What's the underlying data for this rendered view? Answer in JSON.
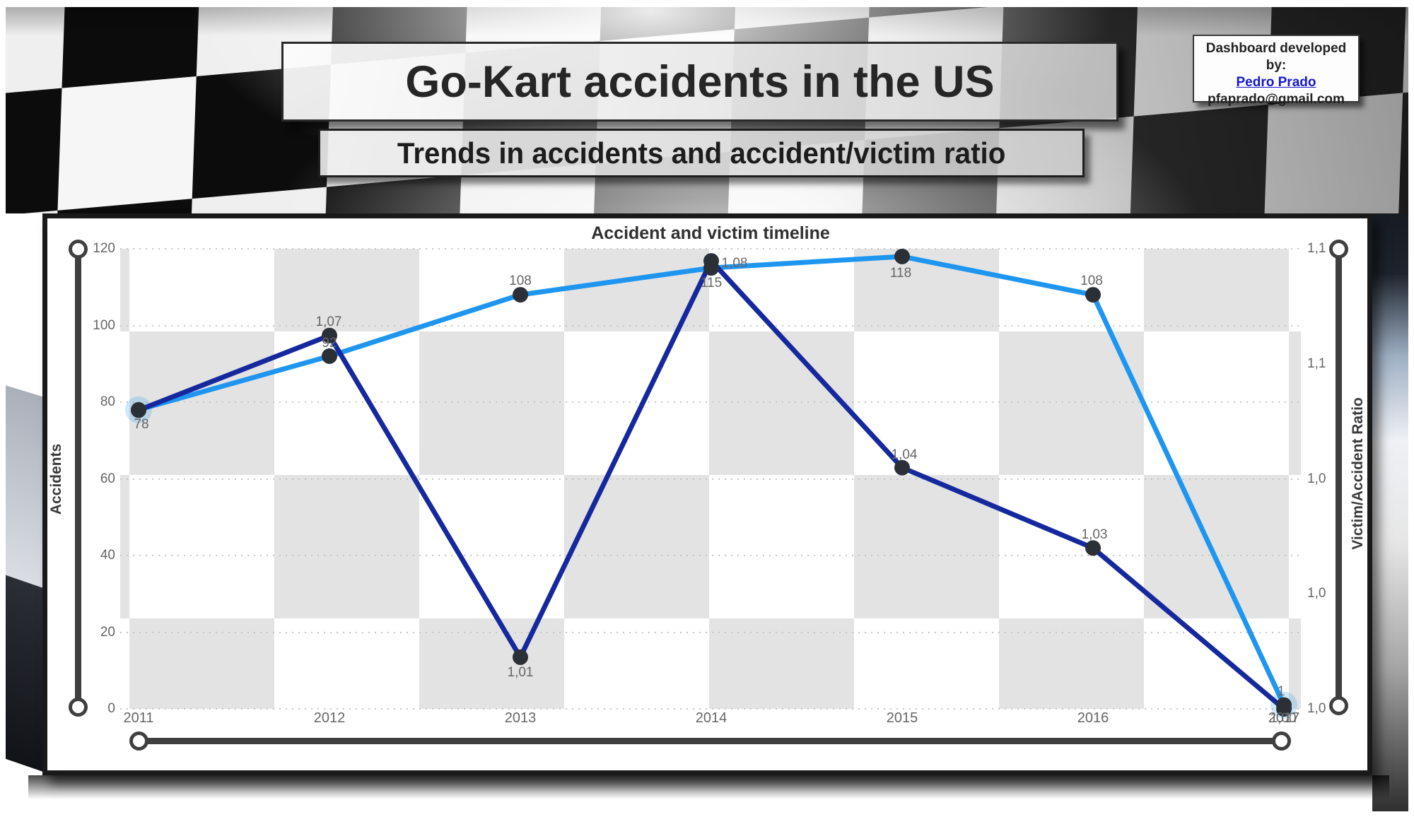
{
  "header": {
    "title": "Go-Kart accidents in the US",
    "subtitle": "Trends in accidents and accident/victim ratio"
  },
  "credit": {
    "text": "Dashboard developed by:",
    "link_label": "Pedro Prado",
    "email": "pfaprado@gmail.com"
  },
  "chart_data": {
    "type": "line",
    "title": "Accident and victim timeline",
    "categories": [
      "2011",
      "2012",
      "2013",
      "2014",
      "2015",
      "2016",
      "2017"
    ],
    "series": [
      {
        "name": "Accidents",
        "axis": "left",
        "color": "#1E96F0",
        "values": [
          78,
          92,
          108,
          115,
          118,
          108,
          1
        ],
        "labels": [
          "78",
          "92",
          "108",
          "115",
          "118",
          "108",
          "1"
        ],
        "label_offsets": [
          [
            4,
            21
          ],
          [
            0,
            -18
          ],
          [
            0,
            -19
          ],
          [
            0,
            22
          ],
          [
            -2,
            24
          ],
          [
            -2,
            -19
          ],
          [
            -4,
            -19
          ]
        ]
      },
      {
        "name": "Victim/Accident Ratio",
        "axis": "right",
        "color": "#15289D",
        "values": [
          1.052,
          1.065,
          1.009,
          1.078,
          1.042,
          1.028,
          1.0
        ],
        "labels": [
          "",
          "1,07",
          "1,01",
          "1,08",
          "1,04",
          "1,03",
          "1,00"
        ],
        "label_offsets": [
          [
            0,
            0
          ],
          [
            -1,
            -19
          ],
          [
            0,
            22
          ],
          [
            33,
            4
          ],
          [
            3,
            -18
          ],
          [
            2,
            -18
          ],
          [
            -1,
            14
          ]
        ]
      }
    ],
    "left_axis": {
      "title": "Accidents",
      "ticks": [
        "120",
        "100",
        "80",
        "60",
        "40",
        "20",
        "0"
      ],
      "min": 0,
      "max": 120
    },
    "right_axis": {
      "title": "Victim/Accident Ratio",
      "ticks": [
        "1,1",
        "1,1",
        "1,0",
        "1,0",
        "1,0"
      ],
      "min": 1.0,
      "max": 1.0801
    },
    "grid": "horizontal-dotted",
    "legend": "none",
    "marker_color": "#2b2f36",
    "halo_color": "rgba(30,150,240,0.22)",
    "line_width": 7,
    "marker_radius": 11
  }
}
